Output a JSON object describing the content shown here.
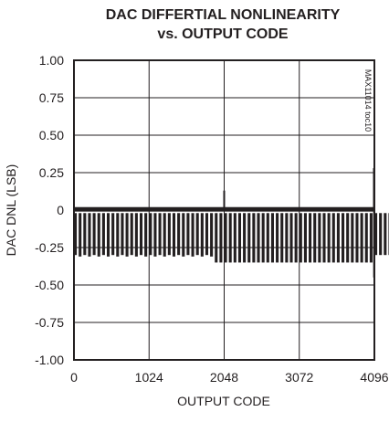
{
  "chart_data": {
    "type": "line",
    "title_lines": [
      "DAC DIFFERTIAL NONLINEARITY",
      "vs. OUTPUT CODE"
    ],
    "xlabel": "OUTPUT CODE",
    "ylabel": "DAC DNL (LSB)",
    "side_note": "MAX11014 toc10",
    "xlim": [
      0,
      4096
    ],
    "ylim": [
      -1.0,
      1.0
    ],
    "x_ticks": [
      0,
      1024,
      2048,
      3072,
      4096
    ],
    "x_tick_labels": [
      "0",
      "1024",
      "2048",
      "3072",
      "4096"
    ],
    "y_ticks": [
      1.0,
      0.75,
      0.5,
      0.25,
      0,
      -0.25,
      -0.5,
      -0.75,
      -1.0
    ],
    "y_tick_labels": [
      "1.00",
      "0.75",
      "0.50",
      "0.25",
      "0",
      "-0.25",
      "-0.50",
      "-0.75",
      "-1.00"
    ],
    "grid": true,
    "series": [
      {
        "color": "#231f20",
        "description_points": {
          "baseline_upper": 0.02,
          "segment_period_codes": 64,
          "segment_min_values": [
            -0.3,
            -0.31,
            -0.3,
            -0.31,
            -0.3,
            -0.31,
            -0.3,
            -0.31,
            -0.3,
            -0.31,
            -0.3,
            -0.31,
            -0.3,
            -0.31,
            -0.3,
            -0.31,
            -0.3,
            -0.31,
            -0.3,
            -0.31,
            -0.3,
            -0.31,
            -0.3,
            -0.31,
            -0.3,
            -0.31,
            -0.3,
            -0.31,
            -0.3,
            -0.31,
            -0.35,
            -0.35,
            -0.35,
            -0.35,
            -0.35,
            -0.35,
            -0.35,
            -0.35,
            -0.35,
            -0.35,
            -0.35,
            -0.35,
            -0.35,
            -0.35,
            -0.35,
            -0.35,
            -0.35,
            -0.35,
            -0.35,
            -0.35,
            -0.35,
            -0.35,
            -0.35,
            -0.35,
            -0.35,
            -0.35,
            -0.35,
            -0.35,
            -0.35,
            -0.35,
            -0.35,
            -0.35,
            -0.35,
            -0.35,
            -0.3,
            -0.3,
            -0.3,
            -0.3,
            -0.3,
            -0.3,
            -0.3,
            -0.3,
            -0.3,
            -0.3,
            -0.3,
            -0.3,
            -0.3,
            -0.3,
            -0.3,
            -0.3,
            -0.3,
            -0.3,
            -0.3,
            -0.3,
            -0.3,
            -0.3,
            -0.3,
            -0.3,
            -0.3,
            -0.3,
            -0.3,
            -0.3,
            -0.3,
            -0.3,
            -0.3,
            -0.3,
            -0.3,
            -0.3
          ],
          "spikes": [
            {
              "x": 2048,
              "y": 0.13
            },
            {
              "x": 4090,
              "y": 0.28
            },
            {
              "x": 4092,
              "y": -0.45
            }
          ]
        }
      }
    ]
  }
}
